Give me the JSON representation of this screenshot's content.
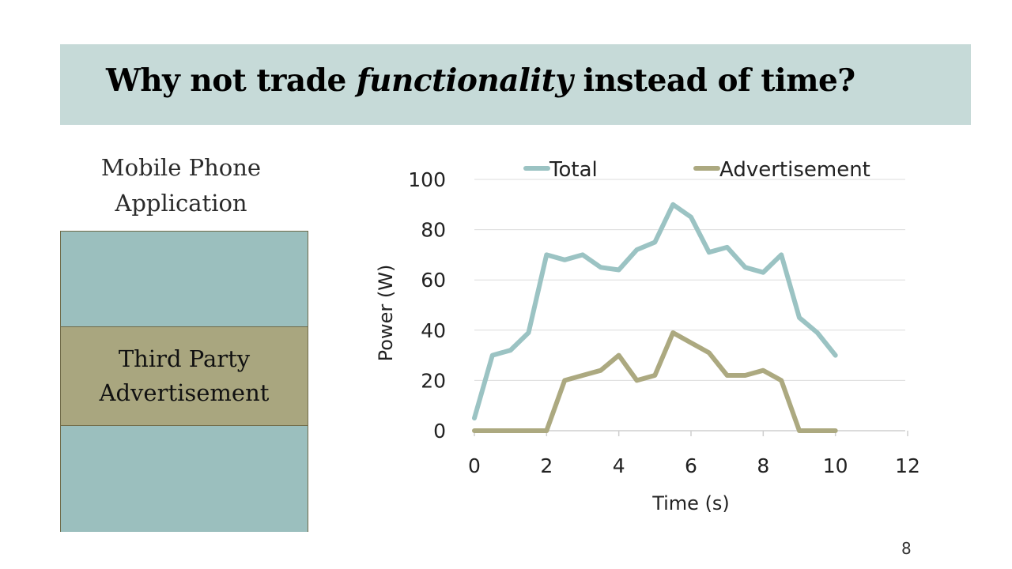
{
  "slide": {
    "title_before": "Why not trade ",
    "title_emphasis": "functionality",
    "title_after": " instead of time?",
    "app_label": "Mobile Phone\nApplication",
    "ad_label": "Third Party\nAdvertisement",
    "page_number": "8"
  },
  "colors": {
    "title_bar": "#c6dad8",
    "phone_teal": "#9bbfbe",
    "phone_ad": "#a9a67f",
    "total_series": "#9bc3c3",
    "ad_series": "#aca980"
  },
  "chart_data": {
    "type": "line",
    "xlabel": "Time (s)",
    "ylabel": "Power (W)",
    "xlim": [
      0,
      12
    ],
    "ylim": [
      0,
      100
    ],
    "xticks": [
      0,
      2,
      4,
      6,
      8,
      10,
      12
    ],
    "yticks": [
      0,
      20,
      40,
      60,
      80,
      100
    ],
    "grid": "horizontal",
    "legend_position": "top",
    "series": [
      {
        "name": "Total",
        "color": "#9bc3c3",
        "x": [
          0,
          0.5,
          1,
          1.5,
          2,
          2.5,
          3,
          3.5,
          4,
          4.5,
          5,
          5.5,
          6,
          6.5,
          7,
          7.5,
          8,
          8.5,
          9,
          9.5,
          10
        ],
        "y": [
          5,
          30,
          32,
          39,
          70,
          68,
          70,
          65,
          64,
          72,
          75,
          90,
          85,
          71,
          73,
          65,
          63,
          70,
          45,
          39,
          30
        ]
      },
      {
        "name": "Advertisement",
        "color": "#aca980",
        "x": [
          0,
          0.5,
          1,
          1.5,
          2,
          2.5,
          3,
          3.5,
          4,
          4.5,
          5,
          5.5,
          6,
          6.5,
          7,
          7.5,
          8,
          8.5,
          9,
          9.5,
          10
        ],
        "y": [
          0,
          0,
          0,
          0,
          0,
          20,
          22,
          24,
          30,
          20,
          22,
          39,
          35,
          31,
          22,
          22,
          24,
          20,
          0,
          0,
          0
        ]
      }
    ]
  }
}
